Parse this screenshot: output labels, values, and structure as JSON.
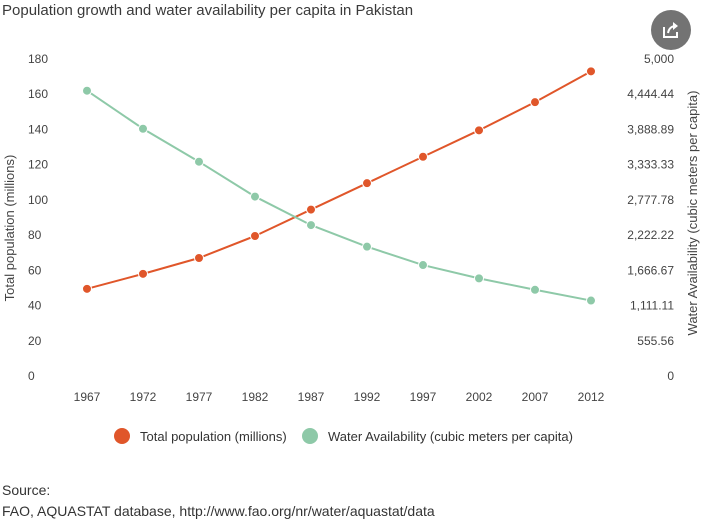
{
  "title": "Population growth and water availability per capita in Pakistan",
  "share_icon": "share-icon",
  "source": {
    "label": "Source:",
    "text": "FAO, AQUASTAT database, http://www.fao.org/nr/water/aquastat/data"
  },
  "colors": {
    "population": "#e0562a",
    "water": "#8ec9a8",
    "share_bg": "#737373"
  },
  "chart_data": {
    "type": "line",
    "categories": [
      "1967",
      "1972",
      "1977",
      "1982",
      "1987",
      "1992",
      "1997",
      "2002",
      "2007",
      "2012"
    ],
    "ylabel": "Total population (millions)",
    "y2label": "Water Availability (cubic meters per capita)",
    "ylim": [
      0,
      180
    ],
    "y2lim": [
      0,
      5000
    ],
    "yticks": [
      "0",
      "20",
      "40",
      "60",
      "80",
      "100",
      "120",
      "140",
      "160",
      "180"
    ],
    "y2ticks": [
      "0",
      "555.56",
      "1,111.11",
      "1,666.67",
      "2,222.22",
      "2,777.78",
      "3,333.33",
      "3,888.89",
      "4,444.44",
      "5,000"
    ],
    "grid": false,
    "legend_position": "bottom",
    "series": [
      {
        "name": "Total population (millions)",
        "axis": "left",
        "color": "#e0562a",
        "values": [
          49.5,
          58,
          67,
          79.5,
          94.5,
          109.5,
          124.5,
          139.5,
          155.5,
          173
        ]
      },
      {
        "name": "Water Availability (cubic meters per capita)",
        "axis": "right",
        "color": "#8ec9a8",
        "values": [
          4500,
          3900,
          3380,
          2830,
          2380,
          2040,
          1750,
          1540,
          1360,
          1190
        ]
      }
    ]
  }
}
